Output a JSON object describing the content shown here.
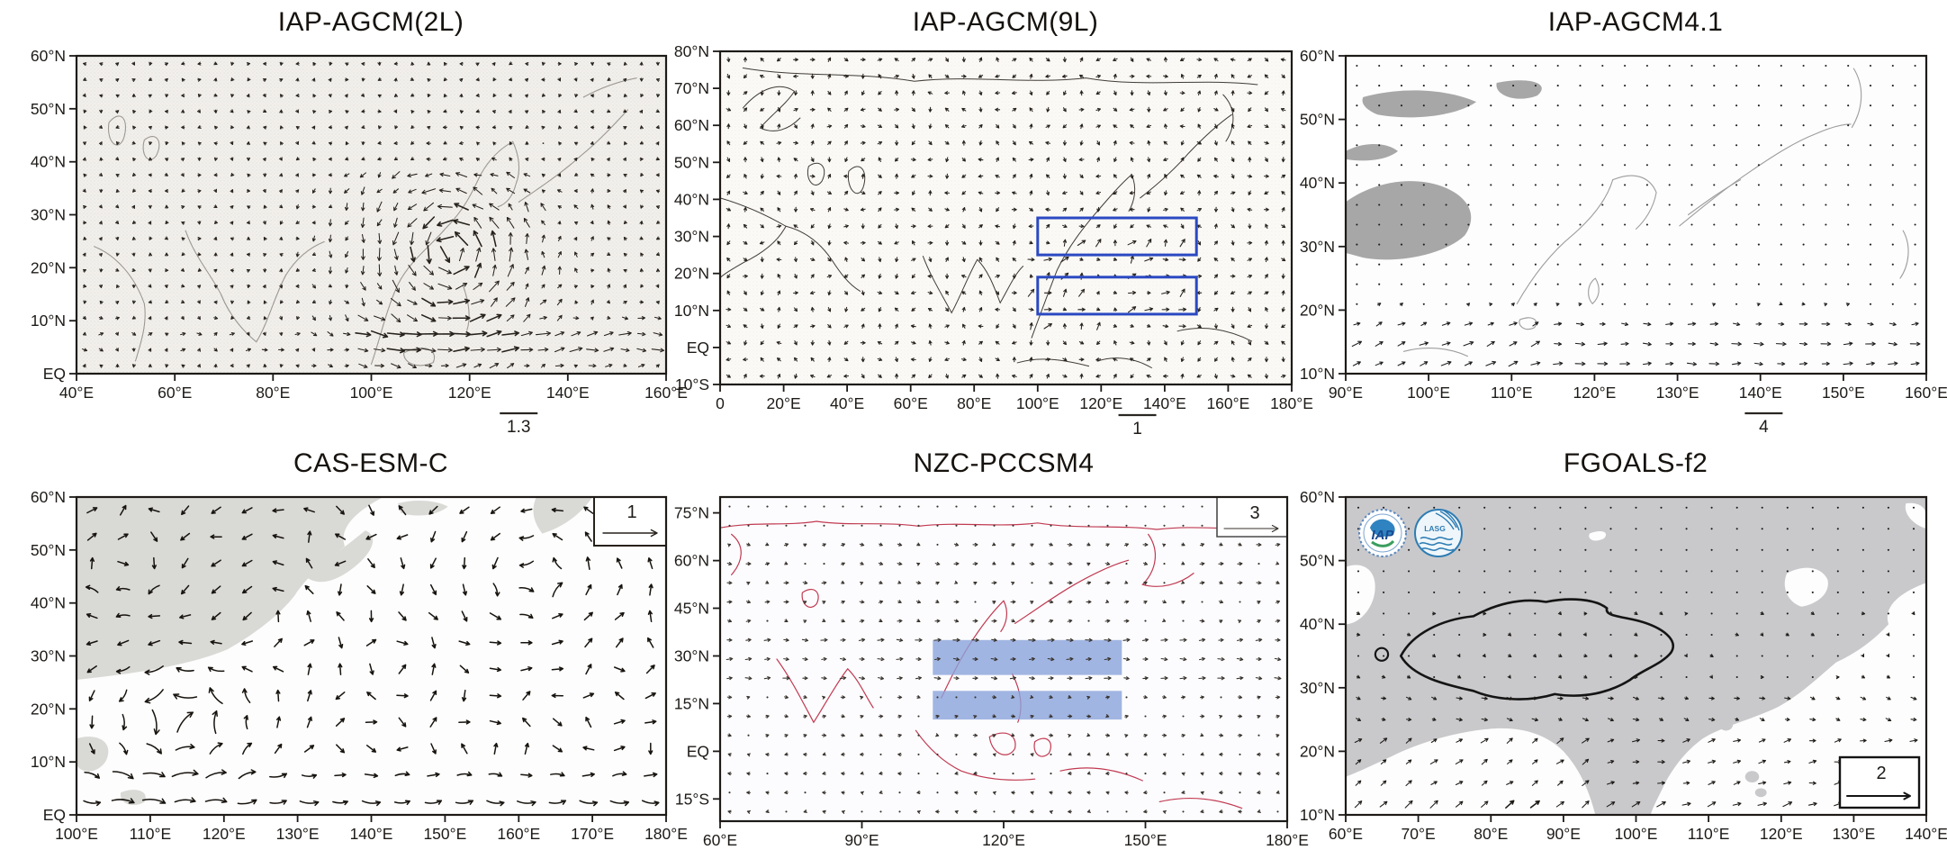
{
  "chart_data": [
    {
      "id": "iap-agcm-2l",
      "type": "quiver",
      "title": "IAP-AGCM(2L)",
      "x_axis": {
        "ticks": [
          "40°E",
          "60°E",
          "80°E",
          "100°E",
          "120°E",
          "140°E",
          "160°E"
        ],
        "values": [
          40,
          60,
          80,
          100,
          120,
          140,
          160
        ],
        "range": [
          40,
          160
        ]
      },
      "y_axis": {
        "ticks": [
          "60°N",
          "50°N",
          "40°N",
          "30°N",
          "20°N",
          "10°N",
          "EQ"
        ],
        "values": [
          60,
          50,
          40,
          30,
          20,
          10,
          0
        ],
        "range": [
          60,
          0
        ]
      },
      "reference_vector": {
        "label": "1.3",
        "style": "bar-below-axis"
      },
      "colors": {
        "vectors": "#26211b",
        "coastlines": "#9c9892"
      }
    },
    {
      "id": "iap-agcm-9l",
      "type": "quiver",
      "title": "IAP-AGCM(9L)",
      "x_axis": {
        "ticks": [
          "0",
          "20°E",
          "40°E",
          "60°E",
          "80°E",
          "100°E",
          "120°E",
          "140°E",
          "160°E",
          "180°E"
        ],
        "values": [
          0,
          20,
          40,
          60,
          80,
          100,
          120,
          140,
          160,
          180
        ],
        "range": [
          0,
          180
        ]
      },
      "y_axis": {
        "ticks": [
          "80°N",
          "70°N",
          "60°N",
          "50°N",
          "40°N",
          "30°N",
          "20°N",
          "10°N",
          "EQ",
          "10°S"
        ],
        "values": [
          80,
          70,
          60,
          50,
          40,
          30,
          20,
          10,
          0,
          -10
        ],
        "range": [
          80,
          -10
        ]
      },
      "reference_vector": {
        "label": "1",
        "style": "bar-below-axis"
      },
      "annotations": [
        {
          "kind": "outline-box",
          "lon": [
            100,
            150
          ],
          "lat": [
            25,
            35
          ]
        },
        {
          "kind": "outline-box",
          "lon": [
            100,
            150
          ],
          "lat": [
            9,
            19
          ]
        }
      ],
      "colors": {
        "vectors": "#26211b",
        "coastlines": "#413c36",
        "annotation_box": "#2b49c2"
      }
    },
    {
      "id": "iap-agcm-4-1",
      "type": "quiver",
      "title": "IAP-AGCM4.1",
      "x_axis": {
        "ticks": [
          "90°E",
          "100°E",
          "110°E",
          "120°E",
          "130°E",
          "140°E",
          "150°E",
          "160°E"
        ],
        "values": [
          90,
          100,
          110,
          120,
          130,
          140,
          150,
          160
        ],
        "range": [
          90,
          160
        ]
      },
      "y_axis": {
        "ticks": [
          "60°N",
          "50°N",
          "40°N",
          "30°N",
          "20°N",
          "10°N"
        ],
        "values": [
          60,
          50,
          40,
          30,
          20,
          10
        ],
        "range": [
          60,
          10
        ]
      },
      "reference_vector": {
        "label": "4",
        "style": "bar-below-axis"
      },
      "colors": {
        "vectors": "#1f1f1f",
        "coastlines": "#9d9d9d",
        "land": "#a7a7a7"
      }
    },
    {
      "id": "cas-esm-c",
      "type": "streamline",
      "title": "CAS-ESM-C",
      "x_axis": {
        "ticks": [
          "100°E",
          "110°E",
          "120°E",
          "130°E",
          "140°E",
          "150°E",
          "160°E",
          "170°E",
          "180°E"
        ],
        "values": [
          100,
          110,
          120,
          130,
          140,
          150,
          160,
          170,
          180
        ],
        "range": [
          100,
          180
        ]
      },
      "y_axis": {
        "ticks": [
          "60°N",
          "50°N",
          "40°N",
          "30°N",
          "20°N",
          "10°N",
          "EQ"
        ],
        "values": [
          60,
          50,
          40,
          30,
          20,
          10,
          0
        ],
        "range": [
          60,
          0
        ]
      },
      "reference_vector": {
        "label": "1",
        "style": "boxed-arrow",
        "position": "top-right"
      },
      "colors": {
        "vectors": "#17130e",
        "land": "#d9d9d6"
      }
    },
    {
      "id": "nzc-pccsm4",
      "type": "quiver",
      "title": "NZC-PCCSM4",
      "x_axis": {
        "ticks": [
          "60°E",
          "90°E",
          "120°E",
          "150°E",
          "180°E"
        ],
        "values": [
          60,
          90,
          120,
          150,
          180
        ],
        "range": [
          60,
          180
        ]
      },
      "y_axis": {
        "ticks": [
          "75°N",
          "60°N",
          "45°N",
          "30°N",
          "15°N",
          "EQ",
          "15°S"
        ],
        "values": [
          75,
          60,
          45,
          30,
          15,
          0,
          -15
        ],
        "range": [
          80,
          -22
        ]
      },
      "reference_vector": {
        "label": "3",
        "style": "boxed-arrow",
        "position": "top-right"
      },
      "annotations": [
        {
          "kind": "filled-box",
          "lon": [
            105,
            145
          ],
          "lat": [
            24,
            35
          ]
        },
        {
          "kind": "filled-box",
          "lon": [
            105,
            145
          ],
          "lat": [
            10,
            19
          ]
        }
      ],
      "colors": {
        "vectors": "#36312b",
        "coastlines": "#c13a52",
        "annotation_fill": "#8aa3db"
      }
    },
    {
      "id": "fgoals-f2",
      "type": "quiver",
      "title": "FGOALS-f2",
      "x_axis": {
        "ticks": [
          "60°E",
          "70°E",
          "80°E",
          "90°E",
          "100°E",
          "110°E",
          "120°E",
          "130°E",
          "140°E"
        ],
        "values": [
          60,
          70,
          80,
          90,
          100,
          110,
          120,
          130,
          140
        ],
        "range": [
          60,
          140
        ]
      },
      "y_axis": {
        "ticks": [
          "60°N",
          "50°N",
          "40°N",
          "30°N",
          "20°N",
          "10°N"
        ],
        "values": [
          60,
          50,
          40,
          30,
          20,
          10
        ],
        "range": [
          60,
          10
        ]
      },
      "reference_vector": {
        "label": "2",
        "style": "boxed-arrow",
        "position": "bottom-right"
      },
      "logos": [
        {
          "label": "IAP"
        },
        {
          "label": "LASG"
        }
      ],
      "annotations": [
        {
          "kind": "region-outline",
          "name": "tibetan-plateau"
        }
      ],
      "colors": {
        "vectors": "#1d1a16",
        "land": "#c9c9cc",
        "region_outline": "#141414"
      }
    }
  ]
}
